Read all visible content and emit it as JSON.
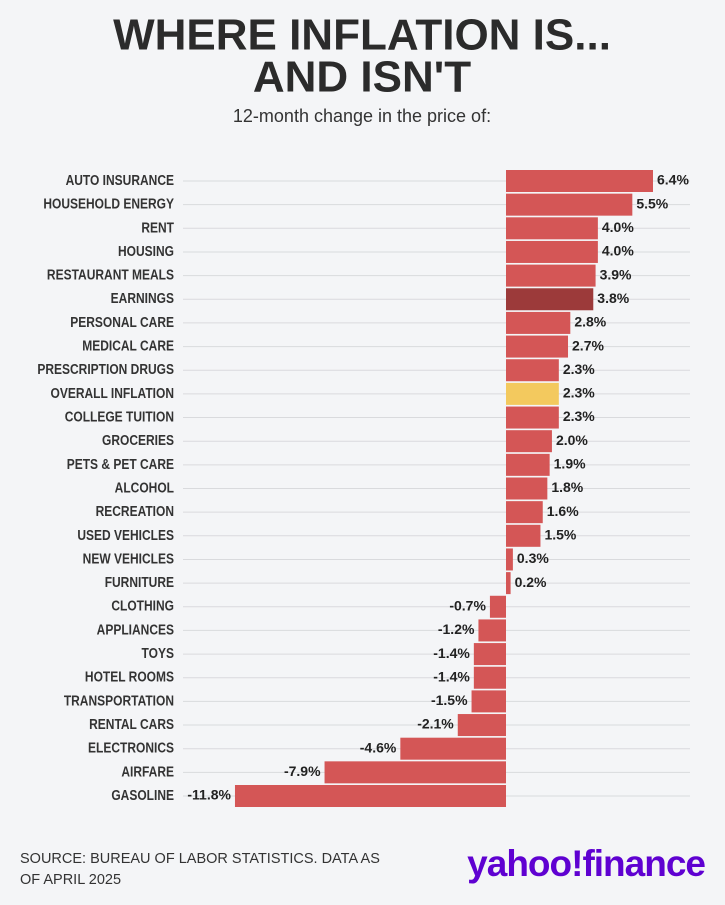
{
  "chart_data": {
    "type": "bar",
    "orientation": "horizontal",
    "title": [
      "WHERE INFLATION IS...",
      "AND ISN'T"
    ],
    "subtitle": "12-month change in the price of:",
    "categories": [
      "AUTO INSURANCE",
      "HOUSEHOLD ENERGY",
      "RENT",
      "HOUSING",
      "RESTAURANT MEALS",
      "EARNINGS",
      "PERSONAL CARE",
      "MEDICAL CARE",
      "PRESCRIPTION DRUGS",
      "OVERALL INFLATION",
      "COLLEGE TUITION",
      "GROCERIES",
      "PETS & PET CARE",
      "ALCOHOL",
      "RECREATION",
      "USED VEHICLES",
      "NEW VEHICLES",
      "FURNITURE",
      "CLOTHING",
      "APPLIANCES",
      "TOYS",
      "HOTEL ROOMS",
      "TRANSPORTATION",
      "RENTAL CARS",
      "ELECTRONICS",
      "AIRFARE",
      "GASOLINE"
    ],
    "values": [
      6.4,
      5.5,
      4.0,
      4.0,
      3.9,
      3.8,
      2.8,
      2.7,
      2.3,
      2.3,
      2.3,
      2.0,
      1.9,
      1.8,
      1.6,
      1.5,
      0.3,
      0.2,
      -0.7,
      -1.2,
      -1.4,
      -1.4,
      -1.5,
      -2.1,
      -4.6,
      -7.9,
      -11.8
    ],
    "value_labels": [
      "6.4%",
      "5.5%",
      "4.0%",
      "4.0%",
      "3.9%",
      "3.8%",
      "2.8%",
      "2.7%",
      "2.3%",
      "2.3%",
      "2.3%",
      "2.0%",
      "1.9%",
      "1.8%",
      "1.6%",
      "1.5%",
      "0.3%",
      "0.2%",
      "-0.7%",
      "-1.2%",
      "-1.4%",
      "-1.4%",
      "-1.5%",
      "-2.1%",
      "-4.6%",
      "-7.9%",
      "-11.8%"
    ],
    "colors": [
      "#d45656",
      "#d45656",
      "#d45656",
      "#d45656",
      "#d45656",
      "#9c3a3a",
      "#d45656",
      "#d45656",
      "#d45656",
      "#f3c95e",
      "#d45656",
      "#d45656",
      "#d45656",
      "#d45656",
      "#d45656",
      "#d45656",
      "#d45656",
      "#d45656",
      "#d45656",
      "#d45656",
      "#d45656",
      "#d45656",
      "#d45656",
      "#d45656",
      "#d45656",
      "#d45656",
      "#d45656"
    ],
    "grid": true,
    "source": [
      "SOURCE: BUREAU OF LABOR STATISTICS. DATA AS",
      "OF APRIL 2025"
    ],
    "logo": "yahoo!finance"
  }
}
